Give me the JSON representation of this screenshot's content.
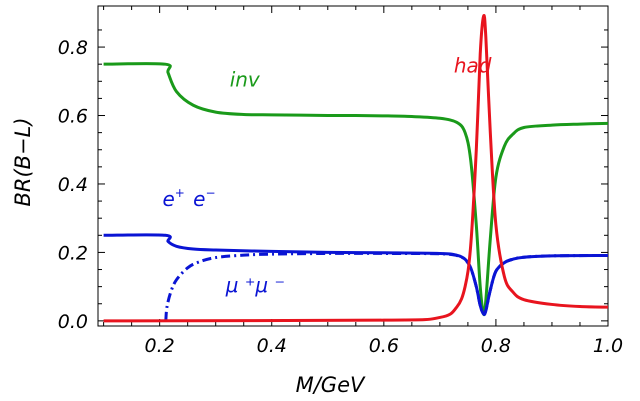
{
  "chart_data": {
    "type": "line",
    "xlabel": "M/GeV",
    "ylabel": "BR(B−L)",
    "xlim": [
      0.09,
      1.0
    ],
    "ylim": [
      -0.015,
      0.92
    ],
    "x_ticks": [
      0.2,
      0.4,
      0.6,
      0.8,
      1.0
    ],
    "x_tick_labels": [
      "0.2",
      "0.4",
      "0.6",
      "0.8",
      "1.0"
    ],
    "y_ticks": [
      0.0,
      0.2,
      0.4,
      0.6,
      0.8
    ],
    "y_tick_labels": [
      "0.0",
      "0.2",
      "0.4",
      "0.6",
      "0.8"
    ],
    "grid": false,
    "legend": "none",
    "series": [
      {
        "name": "inv",
        "color": "#1a9a1a",
        "style": "solid",
        "x": [
          0.1,
          0.21,
          0.215,
          0.23,
          0.26,
          0.3,
          0.35,
          0.4,
          0.45,
          0.5,
          0.55,
          0.6,
          0.65,
          0.7,
          0.73,
          0.745,
          0.755,
          0.765,
          0.772,
          0.778,
          0.782,
          0.79,
          0.8,
          0.815,
          0.83,
          0.85,
          0.9,
          0.95,
          1.0
        ],
        "y": [
          0.75,
          0.75,
          0.725,
          0.67,
          0.63,
          0.61,
          0.603,
          0.602,
          0.601,
          0.6,
          0.6,
          0.599,
          0.597,
          0.592,
          0.58,
          0.55,
          0.47,
          0.28,
          0.1,
          0.02,
          0.06,
          0.24,
          0.42,
          0.51,
          0.545,
          0.565,
          0.572,
          0.575,
          0.577
        ]
      },
      {
        "name": "had",
        "color": "#e8141e",
        "style": "solid",
        "x": [
          0.1,
          0.6,
          0.7,
          0.73,
          0.745,
          0.755,
          0.765,
          0.772,
          0.778,
          0.782,
          0.79,
          0.8,
          0.815,
          0.83,
          0.85,
          0.9,
          0.95,
          1.0
        ],
        "y": [
          0.0,
          0.002,
          0.01,
          0.04,
          0.1,
          0.22,
          0.5,
          0.78,
          0.89,
          0.83,
          0.55,
          0.28,
          0.13,
          0.085,
          0.062,
          0.048,
          0.042,
          0.04
        ]
      },
      {
        "name": "e+ e−",
        "color": "#0a14d4",
        "style": "solid",
        "x": [
          0.1,
          0.21,
          0.215,
          0.23,
          0.26,
          0.3,
          0.4,
          0.5,
          0.6,
          0.7,
          0.73,
          0.745,
          0.755,
          0.765,
          0.772,
          0.778,
          0.782,
          0.79,
          0.8,
          0.815,
          0.83,
          0.85,
          0.9,
          1.0
        ],
        "y": [
          0.25,
          0.25,
          0.232,
          0.218,
          0.21,
          0.207,
          0.203,
          0.2,
          0.199,
          0.197,
          0.192,
          0.18,
          0.155,
          0.1,
          0.045,
          0.02,
          0.03,
          0.09,
          0.145,
          0.17,
          0.18,
          0.186,
          0.19,
          0.191
        ]
      },
      {
        "name": "μ + μ −",
        "color": "#0a14d4",
        "style": "dashdot",
        "x": [
          0.211,
          0.213,
          0.22,
          0.23,
          0.25,
          0.27,
          0.3,
          0.35,
          0.4,
          0.5,
          0.6,
          0.7,
          0.73,
          0.745,
          0.755,
          0.765,
          0.772,
          0.778,
          0.782,
          0.79,
          0.8,
          0.815,
          0.83,
          0.85,
          0.9,
          1.0
        ],
        "y": [
          0.0,
          0.04,
          0.085,
          0.12,
          0.155,
          0.172,
          0.185,
          0.192,
          0.195,
          0.197,
          0.197,
          0.196,
          0.191,
          0.179,
          0.154,
          0.1,
          0.045,
          0.02,
          0.03,
          0.09,
          0.145,
          0.17,
          0.18,
          0.186,
          0.19,
          0.191
        ]
      }
    ],
    "annotations": [
      {
        "series": "inv",
        "text": "inv",
        "x": 0.325,
        "y": 0.685
      },
      {
        "series": "had",
        "text": "had",
        "x": 0.725,
        "y": 0.725
      },
      {
        "series": "e+ e−",
        "x": 0.205,
        "y": 0.335
      },
      {
        "series": "μ + μ −",
        "x": 0.318,
        "y": 0.085
      }
    ],
    "ee_label": {
      "base1": "e",
      "sup1": "+",
      "base2": " e",
      "sup2": "−"
    },
    "mumu_label": "μ ⁺μ ⁻"
  }
}
